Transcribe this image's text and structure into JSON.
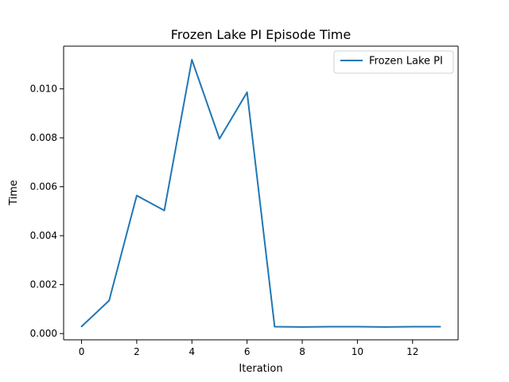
{
  "chart_data": {
    "type": "line",
    "title": "Frozen Lake PI Episode Time",
    "xlabel": "Iteration",
    "ylabel": "Time",
    "xlim": [
      -0.65,
      13.65
    ],
    "ylim": [
      -0.000255,
      0.011745
    ],
    "x_ticks": [
      0,
      2,
      4,
      6,
      8,
      10,
      12
    ],
    "x_tick_labels": [
      "0",
      "2",
      "4",
      "6",
      "8",
      "10",
      "12"
    ],
    "y_ticks": [
      0.0,
      0.002,
      0.004,
      0.006,
      0.008,
      0.01
    ],
    "y_tick_labels": [
      "0.000",
      "0.002",
      "0.004",
      "0.006",
      "0.008",
      "0.010"
    ],
    "grid": false,
    "legend_position": "top-right",
    "series": [
      {
        "name": "Frozen Lake PI",
        "color": "#1f77b4",
        "x": [
          0,
          1,
          2,
          3,
          4,
          5,
          6,
          7,
          8,
          9,
          10,
          11,
          12,
          13
        ],
        "values": [
          0.00029,
          0.00135,
          0.00564,
          0.00503,
          0.01119,
          0.00796,
          0.00986,
          0.00028,
          0.00027,
          0.00028,
          0.00028,
          0.00027,
          0.00028,
          0.00028
        ]
      }
    ]
  }
}
